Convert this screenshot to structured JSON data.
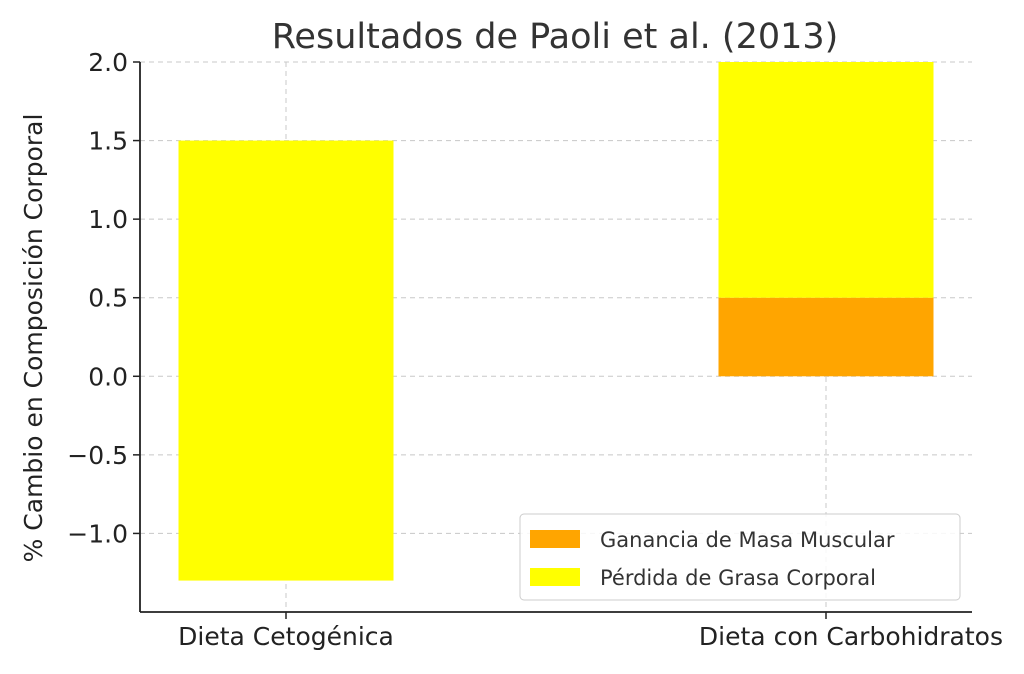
{
  "chart_data": {
    "type": "bar",
    "title": "Resultados de Paoli et al. (2013)",
    "ylabel": "% Cambio en Composición Corporal",
    "xlabel": "",
    "categories": [
      "Dieta Cetogénica",
      "Dieta con Carbohidratos"
    ],
    "ylim": [
      -1.5,
      2.0
    ],
    "yticks": [
      -1.0,
      -0.5,
      0.0,
      0.5,
      1.0,
      1.5,
      2.0
    ],
    "ytick_labels": [
      "−1.0",
      "−0.5",
      "0.0",
      "0.5",
      "1.0",
      "1.5",
      "2.0"
    ],
    "grid": true,
    "legend_position": "bottom-right",
    "series": [
      {
        "name": "Ganancia de Masa Muscular",
        "color": "#FFA500",
        "bars": [
          {
            "category": "Dieta Cetogénica",
            "bottom": 0,
            "top": 0
          },
          {
            "category": "Dieta con Carbohidratos",
            "bottom": 0.0,
            "top": 0.5
          }
        ]
      },
      {
        "name": "Pérdida de Grasa Corporal",
        "color": "#FFFF00",
        "bars": [
          {
            "category": "Dieta Cetogénica",
            "bottom": -1.3,
            "top": 1.5
          },
          {
            "category": "Dieta con Carbohidratos",
            "bottom": 0.5,
            "top": 2.0
          }
        ]
      }
    ]
  }
}
